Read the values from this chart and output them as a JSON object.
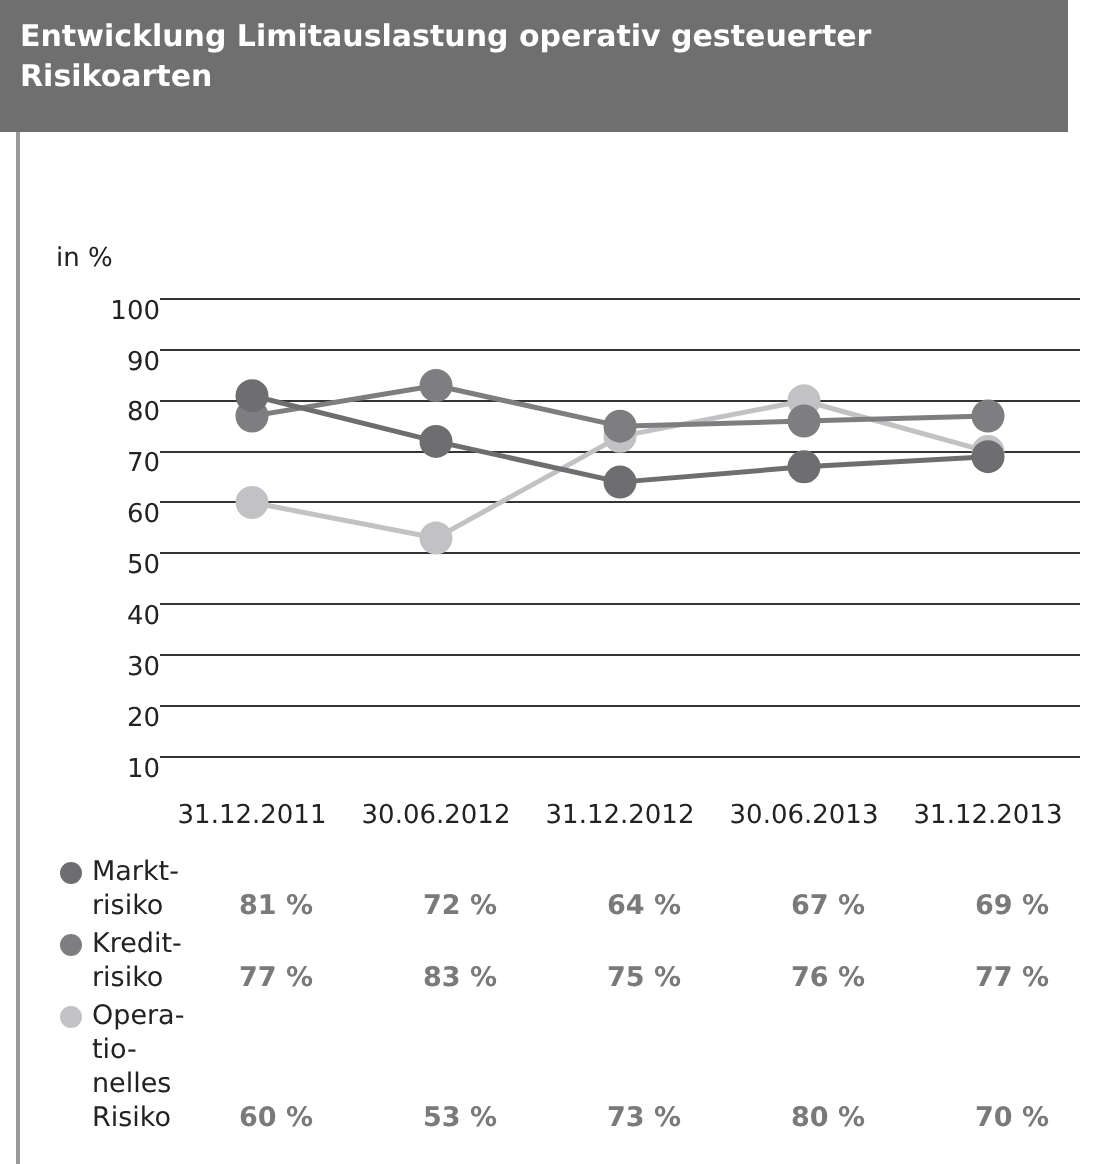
{
  "chart_data": {
    "type": "line",
    "title": "Entwicklung Limitauslastung operativ gesteuerter Risikoarten",
    "ylabel": "in %",
    "categories": [
      "31.12.2011",
      "30.06.2012",
      "31.12.2012",
      "30.06.2013",
      "31.12.2013"
    ],
    "series": [
      {
        "name": "Markt-risiko",
        "color": "#6e6e70",
        "values": [
          81,
          72,
          64,
          67,
          69
        ],
        "value_labels": [
          "81 %",
          "72 %",
          "64 %",
          "67 %",
          "69 %"
        ]
      },
      {
        "name": "Kredit-risiko",
        "color": "#7e7e81",
        "values": [
          77,
          83,
          75,
          76,
          77
        ],
        "value_labels": [
          "77 %",
          "83 %",
          "75 %",
          "76 %",
          "77 %"
        ]
      },
      {
        "name": "Opera-tio-nelles Risiko",
        "color": "#c2c2c4",
        "values": [
          60,
          53,
          73,
          80,
          70
        ],
        "value_labels": [
          "60 %",
          "53 %",
          "73 %",
          "80 %",
          "70 %"
        ]
      }
    ],
    "ylim": [
      10,
      100
    ],
    "yticks": [
      10,
      20,
      30,
      40,
      50,
      60,
      70,
      80,
      90,
      100
    ],
    "grid": "y",
    "legend": "bottom left",
    "marker": "circle",
    "line_style": "solid"
  }
}
